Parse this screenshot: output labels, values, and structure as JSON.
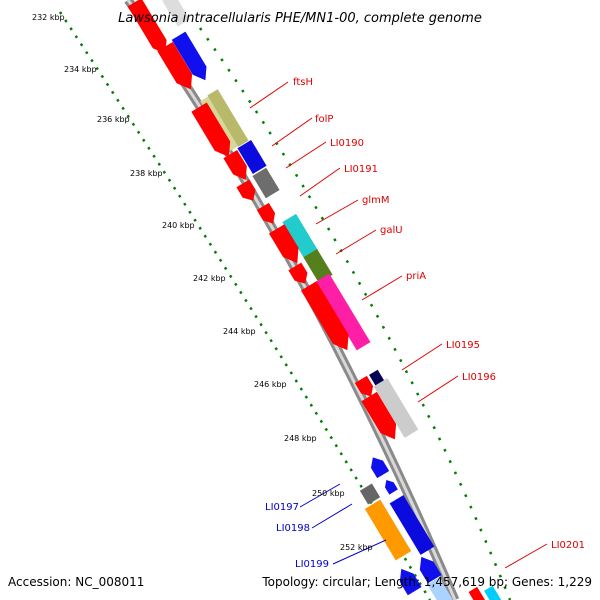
{
  "header": {
    "title": "Lawsonia intracellularis PHE/MN1-00, complete genome"
  },
  "footer": {
    "accession": "Accession: NC_008011",
    "summary": "Topology: circular; Length: 1,457,619 bp; Genes: 1,229"
  },
  "colors": {
    "forward_label": "#e00000",
    "reverse_label": "#0000cc",
    "backbone": "#999999",
    "ruler": "#008000"
  },
  "ruler": {
    "unit": "kbp",
    "ticks": [
      "232 kbp",
      "234 kbp",
      "236 kbp",
      "238 kbp",
      "240 kbp",
      "242 kbp",
      "244 kbp",
      "246 kbp",
      "248 kbp",
      "250 kbp",
      "252 kbp"
    ]
  },
  "gene_labels": {
    "forward": [
      "ftsH",
      "folP",
      "LI0190",
      "LI0191",
      "glmM",
      "galU",
      "priA",
      "LI0195",
      "LI0196",
      "LI0201"
    ],
    "reverse": [
      "LI0197",
      "LI0198",
      "LI0199"
    ]
  }
}
